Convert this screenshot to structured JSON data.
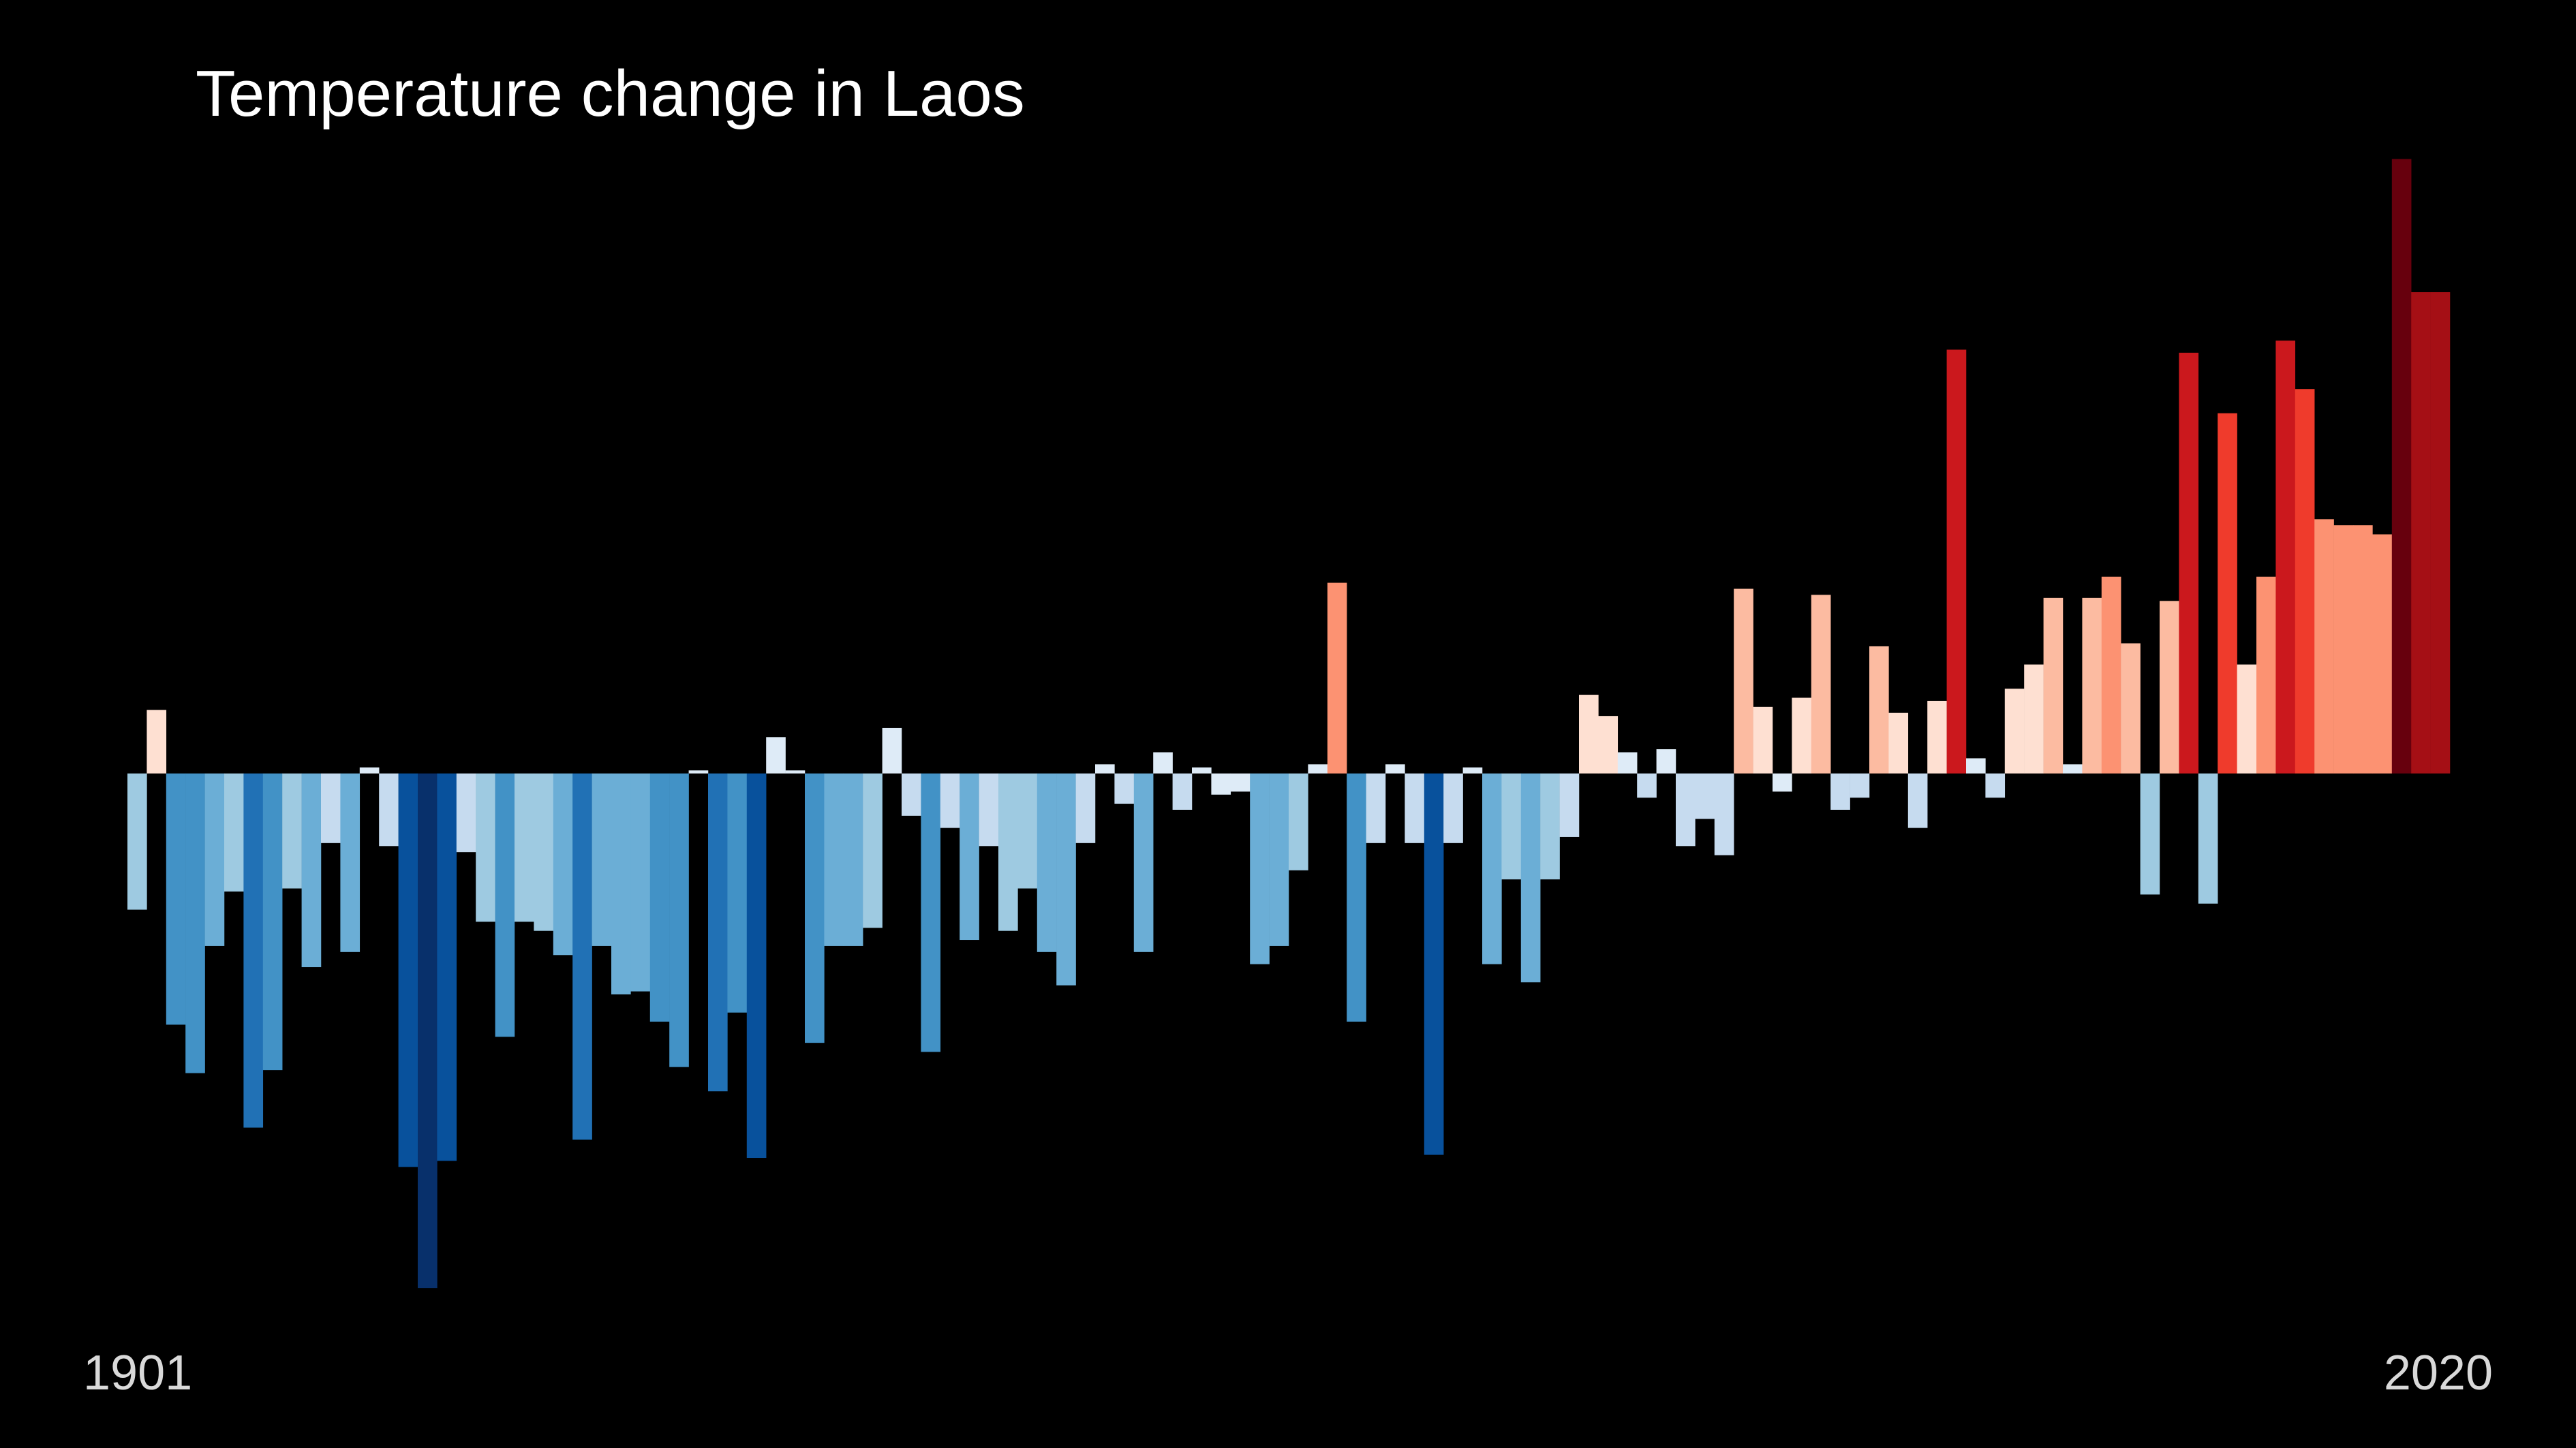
{
  "chart_data": {
    "type": "bar",
    "title": "Temperature change in Laos",
    "start_year_label": "1901",
    "end_year_label": "2020",
    "xlabel": "",
    "ylabel": "",
    "ylim": [
      -1.72,
      2.04
    ],
    "x": [
      1901,
      1902,
      1903,
      1904,
      1905,
      1906,
      1907,
      1908,
      1909,
      1910,
      1911,
      1912,
      1913,
      1914,
      1915,
      1916,
      1917,
      1918,
      1919,
      1920,
      1921,
      1922,
      1923,
      1924,
      1925,
      1926,
      1927,
      1928,
      1929,
      1930,
      1931,
      1932,
      1933,
      1934,
      1935,
      1936,
      1937,
      1938,
      1939,
      1940,
      1941,
      1942,
      1943,
      1944,
      1945,
      1946,
      1947,
      1948,
      1949,
      1950,
      1951,
      1952,
      1953,
      1954,
      1955,
      1956,
      1957,
      1958,
      1959,
      1960,
      1961,
      1962,
      1963,
      1964,
      1965,
      1966,
      1967,
      1968,
      1969,
      1970,
      1971,
      1972,
      1973,
      1974,
      1975,
      1976,
      1977,
      1978,
      1979,
      1980,
      1981,
      1982,
      1983,
      1984,
      1985,
      1986,
      1987,
      1988,
      1989,
      1990,
      1991,
      1992,
      1993,
      1994,
      1995,
      1996,
      1997,
      1998,
      1999,
      2000,
      2001,
      2002,
      2003,
      2004,
      2005,
      2006,
      2007,
      2008,
      2009,
      2010,
      2011,
      2012,
      2013,
      2014,
      2015,
      2016,
      2017,
      2018,
      2019,
      2020
    ],
    "values": [
      -0.45,
      0.21,
      -0.83,
      -0.99,
      -0.57,
      -0.39,
      -1.17,
      -0.98,
      -0.38,
      -0.64,
      -0.23,
      -0.59,
      0.02,
      -0.24,
      -1.3,
      -1.7,
      -1.28,
      -0.26,
      -0.49,
      -0.87,
      -0.49,
      -0.52,
      -0.6,
      -1.21,
      -0.57,
      -0.73,
      -0.72,
      -0.82,
      -0.97,
      0.01,
      -1.05,
      -0.79,
      -1.27,
      0.12,
      0.01,
      -0.89,
      -0.57,
      -0.57,
      -0.51,
      0.15,
      -0.14,
      -0.92,
      -0.18,
      -0.55,
      -0.24,
      -0.52,
      -0.38,
      -0.59,
      -0.7,
      -0.23,
      0.03,
      -0.1,
      -0.59,
      0.07,
      -0.12,
      0.02,
      -0.07,
      -0.06,
      -0.63,
      -0.57,
      -0.32,
      0.03,
      0.63,
      -0.82,
      -0.23,
      0.03,
      -0.23,
      -1.26,
      -0.23,
      0.02,
      -0.63,
      -0.35,
      -0.69,
      -0.35,
      -0.21,
      0.26,
      0.19,
      0.07,
      -0.08,
      0.08,
      -0.24,
      -0.15,
      -0.27,
      0.61,
      0.22,
      -0.06,
      0.25,
      0.59,
      -0.12,
      -0.08,
      0.42,
      0.2,
      -0.18,
      0.24,
      1.4,
      0.05,
      -0.08,
      0.28,
      0.36,
      0.58,
      0.03,
      0.58,
      0.65,
      0.43,
      -0.4,
      0.57,
      1.39,
      -0.43,
      1.19,
      0.36,
      0.65,
      1.43,
      1.27,
      0.84,
      0.82,
      0.82,
      0.79,
      2.03,
      1.59,
      1.59
    ],
    "color_min": -1.72,
    "color_max": 2.03,
    "color_ramp": [
      "#08306b",
      "#08519c",
      "#2171b5",
      "#4292c6",
      "#6baed6",
      "#9ecae1",
      "#c6dbef",
      "#deebf7",
      "#fee0d2",
      "#fcbba1",
      "#fc9272",
      "#fb6a4a",
      "#ef3b2c",
      "#cb181d",
      "#a50f15",
      "#67000d"
    ],
    "grid": false,
    "legend": "none"
  },
  "colors": {
    "background": "#000000",
    "title": "#ffffff",
    "year_labels": "#d9d9d9"
  }
}
